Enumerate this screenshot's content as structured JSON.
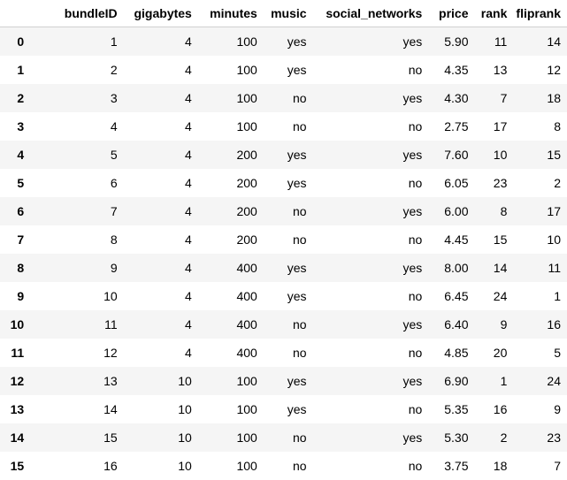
{
  "table": {
    "columns": [
      "bundleID",
      "gigabytes",
      "minutes",
      "music",
      "social_networks",
      "price",
      "rank",
      "fliprank"
    ],
    "rows": [
      {
        "index": "0",
        "cells": [
          "1",
          "4",
          "100",
          "yes",
          "yes",
          "5.90",
          "11",
          "14"
        ]
      },
      {
        "index": "1",
        "cells": [
          "2",
          "4",
          "100",
          "yes",
          "no",
          "4.35",
          "13",
          "12"
        ]
      },
      {
        "index": "2",
        "cells": [
          "3",
          "4",
          "100",
          "no",
          "yes",
          "4.30",
          "7",
          "18"
        ]
      },
      {
        "index": "3",
        "cells": [
          "4",
          "4",
          "100",
          "no",
          "no",
          "2.75",
          "17",
          "8"
        ]
      },
      {
        "index": "4",
        "cells": [
          "5",
          "4",
          "200",
          "yes",
          "yes",
          "7.60",
          "10",
          "15"
        ]
      },
      {
        "index": "5",
        "cells": [
          "6",
          "4",
          "200",
          "yes",
          "no",
          "6.05",
          "23",
          "2"
        ]
      },
      {
        "index": "6",
        "cells": [
          "7",
          "4",
          "200",
          "no",
          "yes",
          "6.00",
          "8",
          "17"
        ]
      },
      {
        "index": "7",
        "cells": [
          "8",
          "4",
          "200",
          "no",
          "no",
          "4.45",
          "15",
          "10"
        ]
      },
      {
        "index": "8",
        "cells": [
          "9",
          "4",
          "400",
          "yes",
          "yes",
          "8.00",
          "14",
          "11"
        ]
      },
      {
        "index": "9",
        "cells": [
          "10",
          "4",
          "400",
          "yes",
          "no",
          "6.45",
          "24",
          "1"
        ]
      },
      {
        "index": "10",
        "cells": [
          "11",
          "4",
          "400",
          "no",
          "yes",
          "6.40",
          "9",
          "16"
        ]
      },
      {
        "index": "11",
        "cells": [
          "12",
          "4",
          "400",
          "no",
          "no",
          "4.85",
          "20",
          "5"
        ]
      },
      {
        "index": "12",
        "cells": [
          "13",
          "10",
          "100",
          "yes",
          "yes",
          "6.90",
          "1",
          "24"
        ]
      },
      {
        "index": "13",
        "cells": [
          "14",
          "10",
          "100",
          "yes",
          "no",
          "5.35",
          "16",
          "9"
        ]
      },
      {
        "index": "14",
        "cells": [
          "15",
          "10",
          "100",
          "no",
          "yes",
          "5.30",
          "2",
          "23"
        ]
      },
      {
        "index": "15",
        "cells": [
          "16",
          "10",
          "100",
          "no",
          "no",
          "3.75",
          "18",
          "7"
        ]
      }
    ]
  }
}
